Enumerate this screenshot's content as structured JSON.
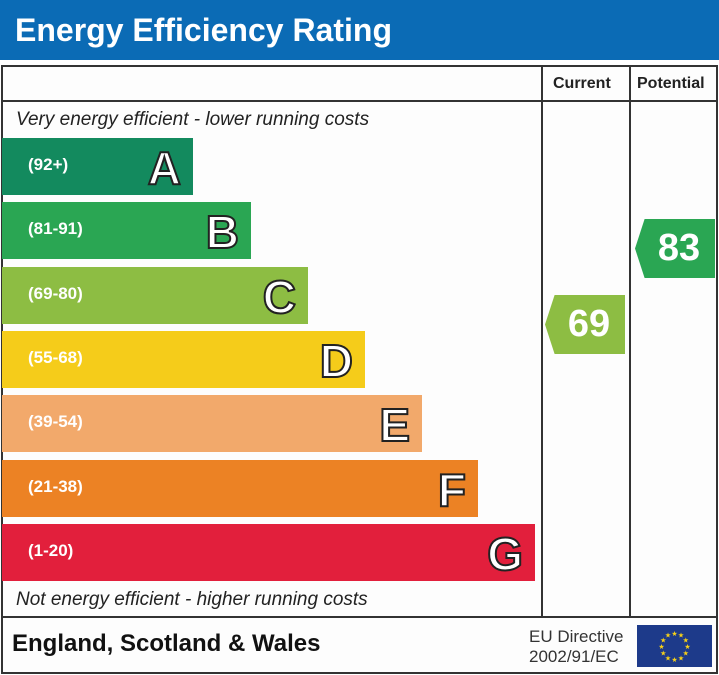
{
  "header": {
    "title": "Energy Efficiency Rating"
  },
  "columns": {
    "current": "Current",
    "potential": "Potential"
  },
  "notes": {
    "top": "Very energy efficient - lower running costs",
    "bottom": "Not energy efficient - higher running costs"
  },
  "footer": {
    "region": "England, Scotland & Wales",
    "directive_line1": "EU Directive",
    "directive_line2": "2002/91/EC"
  },
  "chart_data": {
    "type": "bar",
    "bands": [
      {
        "letter": "A",
        "range": "(92+)",
        "color": "#138a5e"
      },
      {
        "letter": "B",
        "range": "(81-91)",
        "color": "#2aa653"
      },
      {
        "letter": "C",
        "range": "(69-80)",
        "color": "#8dbd43"
      },
      {
        "letter": "D",
        "range": "(55-68)",
        "color": "#f5cc1a"
      },
      {
        "letter": "E",
        "range": "(39-54)",
        "color": "#f2a96b"
      },
      {
        "letter": "F",
        "range": "(21-38)",
        "color": "#ec8224"
      },
      {
        "letter": "G",
        "range": "(1-20)",
        "color": "#e21f3c"
      }
    ],
    "current": {
      "value": "69",
      "band": "C",
      "color": "#8dbd43"
    },
    "potential": {
      "value": "83",
      "band": "B",
      "color": "#2aa653"
    }
  }
}
